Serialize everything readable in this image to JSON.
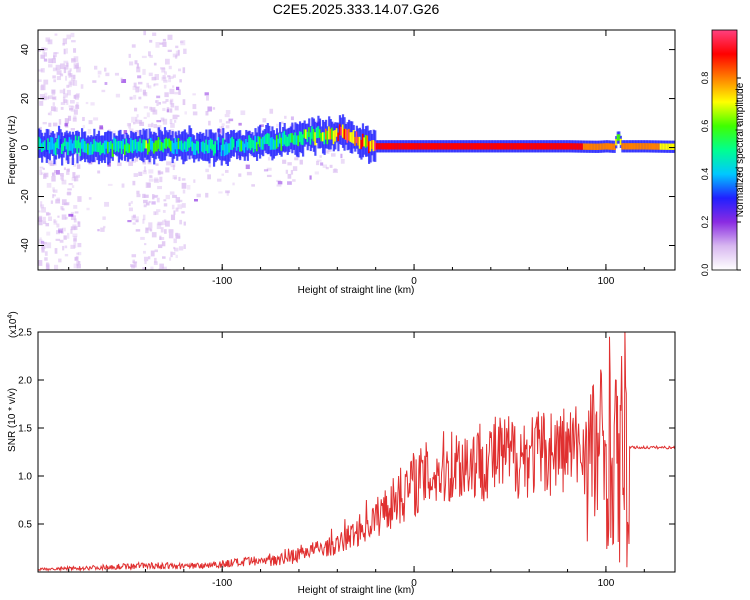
{
  "figure": {
    "title": "C2E5.2025.333.14.07.G26"
  },
  "chart_data": [
    {
      "type": "heatmap",
      "title": "C2E5.2025.333.14.07.G26",
      "xlabel": "Height of straight line (km)",
      "ylabel": "Frequency (Hz)",
      "xlim": [
        -196,
        136
      ],
      "ylim": [
        -50,
        48
      ],
      "xticks": [
        -100,
        0,
        100
      ],
      "xtick_labels": [
        "-100",
        "0",
        "100"
      ],
      "yticks": [
        -40,
        -20,
        0,
        20,
        40
      ],
      "ytick_labels": [
        "-40",
        "-20",
        "0",
        "20",
        "40"
      ],
      "grid": false,
      "colorbar": {
        "label": "Normalized spectral amplitude",
        "range": [
          0,
          1
        ],
        "ticks": [
          0.0,
          0.2,
          0.4,
          0.6,
          0.8
        ],
        "tick_labels": [
          "0.0",
          "0.2",
          "0.4",
          "0.6",
          "0.8"
        ],
        "colormap": [
          "#ffffff",
          "#d8b8f0",
          "#8a2be2",
          "#2020ff",
          "#00c8ff",
          "#00ff90",
          "#40ff00",
          "#ffff00",
          "#ff8000",
          "#ff0000",
          "#ff4080"
        ]
      },
      "ridge": {
        "x": [
          -196,
          -180,
          -160,
          -145,
          -135,
          -120,
          -100,
          -80,
          -65,
          -55,
          -45,
          -38,
          -33,
          -25,
          -20,
          0,
          20,
          50,
          80,
          95,
          100,
          104,
          106,
          108,
          120,
          136
        ],
        "y": [
          0.5,
          1.0,
          0.0,
          1.0,
          0.5,
          1.0,
          0.0,
          2.0,
          3.0,
          5.0,
          5.0,
          6.0,
          3.5,
          1.5,
          0.5,
          0.5,
          0.5,
          0.5,
          0.5,
          0.3,
          0.5,
          0.3,
          5.0,
          0.5,
          0.5,
          0.3
        ],
        "amplitude": [
          0.45,
          0.45,
          0.5,
          0.5,
          0.6,
          0.5,
          0.45,
          0.5,
          0.55,
          0.6,
          0.7,
          0.85,
          0.8,
          0.85,
          0.9,
          0.9,
          0.9,
          0.9,
          0.9,
          0.8,
          0.8,
          0.8,
          0.6,
          0.8,
          0.8,
          0.7
        ]
      },
      "noise_band_x": [
        [
          -196,
          -175
        ],
        [
          -150,
          -120
        ]
      ]
    },
    {
      "type": "line",
      "xlabel": "Height of straight line (km)",
      "ylabel": "SNR (10 * v/v)",
      "scale_label": "(x10",
      "scale_exponent": "4",
      "xlim": [
        -196,
        136
      ],
      "ylim": [
        0,
        2.5
      ],
      "xticks": [
        -100,
        0,
        100
      ],
      "xtick_labels": [
        "-100",
        "0",
        "100"
      ],
      "yticks": [
        0.5,
        1.0,
        1.5,
        2.0,
        2.5
      ],
      "ytick_labels": [
        "0.5",
        "1.0",
        "1.5",
        "2.0",
        "2.5"
      ],
      "grid": false,
      "series": [
        {
          "color": "#e03030",
          "envelope_x": [
            -196,
            -160,
            -140,
            -120,
            -100,
            -80,
            -60,
            -40,
            -30,
            -20,
            -10,
            0,
            20,
            40,
            60,
            80,
            90,
            95,
            100,
            104,
            106,
            110,
            112,
            120,
            136
          ],
          "envelope_y": [
            0.03,
            0.06,
            0.08,
            0.07,
            0.1,
            0.13,
            0.22,
            0.3,
            0.45,
            0.6,
            0.8,
            1.0,
            1.2,
            1.28,
            1.32,
            1.38,
            1.4,
            1.4,
            1.45,
            1.4,
            1.3,
            1.3,
            1.3,
            1.3,
            1.3
          ],
          "spikes": [
            {
              "x": -43,
              "y": 0.45
            },
            {
              "x": -36,
              "y": 0.55
            },
            {
              "x": -25,
              "y": 0.75
            },
            {
              "x": -15,
              "y": 0.85
            },
            {
              "x": -8,
              "y": 1.0
            },
            {
              "x": 92,
              "y": 1.85
            },
            {
              "x": 96,
              "y": 1.45
            },
            {
              "x": 102,
              "y": 2.45
            },
            {
              "x": 105,
              "y": 2.0
            },
            {
              "x": 108,
              "y": 2.25
            },
            {
              "x": 110,
              "y": 2.55
            },
            {
              "x": 111,
              "y": 0.05
            },
            {
              "x": 104,
              "y": 0.3
            },
            {
              "x": 107,
              "y": 0.1
            }
          ]
        }
      ]
    }
  ]
}
